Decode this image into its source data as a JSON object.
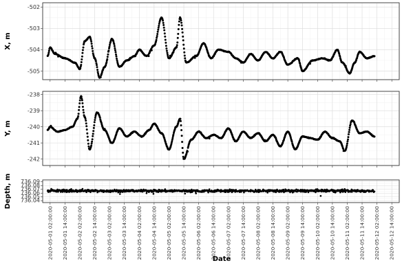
{
  "chart_data": {
    "type": "scatter",
    "xlabel": "Date",
    "x_ticks": [
      "2020-05-01 02:00:00",
      "2020-05-01 14:00:00",
      "2020-05-02 02:00:00",
      "2020-05-02 14:00:00",
      "2020-05-03 02:00:00",
      "2020-05-03 14:00:00",
      "2020-05-04 02:00:00",
      "2020-05-04 14:00:00",
      "2020-05-05 02:00:00",
      "2020-05-05 14:00:00",
      "2020-05-06 02:00:00",
      "2020-05-06 14:00:00",
      "2020-05-07 02:00:00",
      "2020-05-07 14:00:00",
      "2020-05-08 02:00:00",
      "2020-05-08 14:00:00",
      "2020-05-09 02:00:00",
      "2020-05-09 14:00:00",
      "2020-05-10 02:00:00",
      "2020-05-10 14:00:00",
      "2020-05-11 02:00:00",
      "2020-05-11 14:00:00",
      "2020-05-12 02:00:00",
      "2020-05-12 14:00:00"
    ],
    "xlim": [
      "2020-04-30 20:00:00",
      "2020-05-12 20:00:00"
    ],
    "data_range": [
      "2020-05-01 00:00:00",
      "2020-05-12 00:00:00"
    ],
    "grid": true,
    "point_color": "#000000",
    "panels": [
      {
        "ylabel": "X, m",
        "ylim": [
          -505.4,
          -501.8
        ],
        "yticks": [
          "-505",
          "-504",
          "-503",
          "-502"
        ],
        "ytick_values": [
          -505,
          -504,
          -503,
          -502
        ],
        "keypoints": [
          [
            "2020-05-01 00:00:00",
            -504.3
          ],
          [
            "2020-05-01 02:00:00",
            -503.9
          ],
          [
            "2020-05-01 06:00:00",
            -504.2
          ],
          [
            "2020-05-01 14:00:00",
            -504.4
          ],
          [
            "2020-05-01 22:00:00",
            -504.6
          ],
          [
            "2020-05-02 02:00:00",
            -504.9
          ],
          [
            "2020-05-02 06:00:00",
            -503.6
          ],
          [
            "2020-05-02 10:00:00",
            -503.4
          ],
          [
            "2020-05-02 14:00:00",
            -504.4
          ],
          [
            "2020-05-02 18:00:00",
            -505.3
          ],
          [
            "2020-05-02 22:00:00",
            -504.8
          ],
          [
            "2020-05-03 04:00:00",
            -503.5
          ],
          [
            "2020-05-03 10:00:00",
            -504.8
          ],
          [
            "2020-05-03 16:00:00",
            -504.5
          ],
          [
            "2020-05-03 22:00:00",
            -504.3
          ],
          [
            "2020-05-04 02:00:00",
            -504.0
          ],
          [
            "2020-05-04 08:00:00",
            -504.3
          ],
          [
            "2020-05-04 14:00:00",
            -503.8
          ],
          [
            "2020-05-04 20:00:00",
            -502.5
          ],
          [
            "2020-05-05 02:00:00",
            -504.4
          ],
          [
            "2020-05-05 08:00:00",
            -503.9
          ],
          [
            "2020-05-05 11:00:00",
            -502.5
          ],
          [
            "2020-05-05 16:00:00",
            -504.6
          ],
          [
            "2020-05-06 00:00:00",
            -504.3
          ],
          [
            "2020-05-06 06:00:00",
            -503.7
          ],
          [
            "2020-05-06 12:00:00",
            -504.4
          ],
          [
            "2020-05-06 18:00:00",
            -504.0
          ],
          [
            "2020-05-07 02:00:00",
            -504.1
          ],
          [
            "2020-05-07 08:00:00",
            -504.4
          ],
          [
            "2020-05-07 14:00:00",
            -504.6
          ],
          [
            "2020-05-07 20:00:00",
            -504.2
          ],
          [
            "2020-05-08 02:00:00",
            -504.5
          ],
          [
            "2020-05-08 08:00:00",
            -504.1
          ],
          [
            "2020-05-08 14:00:00",
            -504.4
          ],
          [
            "2020-05-08 20:00:00",
            -504.1
          ],
          [
            "2020-05-09 02:00:00",
            -504.7
          ],
          [
            "2020-05-09 10:00:00",
            -504.4
          ],
          [
            "2020-05-09 14:00:00",
            -505.0
          ],
          [
            "2020-05-09 22:00:00",
            -504.5
          ],
          [
            "2020-05-10 06:00:00",
            -504.4
          ],
          [
            "2020-05-10 12:00:00",
            -504.5
          ],
          [
            "2020-05-10 18:00:00",
            -504.0
          ],
          [
            "2020-05-10 22:00:00",
            -504.6
          ],
          [
            "2020-05-11 04:00:00",
            -505.1
          ],
          [
            "2020-05-11 08:00:00",
            -504.6
          ],
          [
            "2020-05-11 12:00:00",
            -504.1
          ],
          [
            "2020-05-11 18:00:00",
            -504.4
          ],
          [
            "2020-05-12 00:00:00",
            -504.3
          ]
        ]
      },
      {
        "ylabel": "Y, m",
        "ylim": [
          -242.4,
          -237.8
        ],
        "yticks": [
          "-242",
          "-241",
          "-240",
          "-239",
          "-238"
        ],
        "ytick_values": [
          -242,
          -241,
          -240,
          -239,
          -238
        ],
        "keypoints": [
          [
            "2020-05-01 00:00:00",
            -240.2
          ],
          [
            "2020-05-01 02:00:00",
            -240.0
          ],
          [
            "2020-05-01 08:00:00",
            -240.3
          ],
          [
            "2020-05-01 14:00:00",
            -240.2
          ],
          [
            "2020-05-01 20:00:00",
            -240.0
          ],
          [
            "2020-05-02 00:00:00",
            -239.5
          ],
          [
            "2020-05-02 03:00:00",
            -238.1
          ],
          [
            "2020-05-02 06:00:00",
            -239.4
          ],
          [
            "2020-05-02 10:00:00",
            -241.4
          ],
          [
            "2020-05-02 16:00:00",
            -239.1
          ],
          [
            "2020-05-02 22:00:00",
            -240.2
          ],
          [
            "2020-05-03 04:00:00",
            -241.0
          ],
          [
            "2020-05-03 10:00:00",
            -240.1
          ],
          [
            "2020-05-03 16:00:00",
            -240.6
          ],
          [
            "2020-05-03 22:00:00",
            -240.3
          ],
          [
            "2020-05-04 04:00:00",
            -240.6
          ],
          [
            "2020-05-04 10:00:00",
            -240.2
          ],
          [
            "2020-05-04 14:00:00",
            -239.8
          ],
          [
            "2020-05-04 20:00:00",
            -240.4
          ],
          [
            "2020-05-05 02:00:00",
            -241.4
          ],
          [
            "2020-05-05 08:00:00",
            -240.0
          ],
          [
            "2020-05-05 11:00:00",
            -239.5
          ],
          [
            "2020-05-05 14:00:00",
            -242.0
          ],
          [
            "2020-05-05 20:00:00",
            -240.8
          ],
          [
            "2020-05-06 02:00:00",
            -240.3
          ],
          [
            "2020-05-06 08:00:00",
            -240.7
          ],
          [
            "2020-05-06 14:00:00",
            -240.5
          ],
          [
            "2020-05-06 20:00:00",
            -240.7
          ],
          [
            "2020-05-07 02:00:00",
            -240.1
          ],
          [
            "2020-05-07 08:00:00",
            -240.9
          ],
          [
            "2020-05-07 14:00:00",
            -240.3
          ],
          [
            "2020-05-07 20:00:00",
            -240.7
          ],
          [
            "2020-05-08 02:00:00",
            -240.4
          ],
          [
            "2020-05-08 08:00:00",
            -240.9
          ],
          [
            "2020-05-08 14:00:00",
            -240.5
          ],
          [
            "2020-05-08 20:00:00",
            -241.2
          ],
          [
            "2020-05-09 02:00:00",
            -240.3
          ],
          [
            "2020-05-09 08:00:00",
            -241.4
          ],
          [
            "2020-05-09 14:00:00",
            -240.6
          ],
          [
            "2020-05-09 20:00:00",
            -240.7
          ],
          [
            "2020-05-10 02:00:00",
            -240.8
          ],
          [
            "2020-05-10 08:00:00",
            -240.3
          ],
          [
            "2020-05-10 14:00:00",
            -240.7
          ],
          [
            "2020-05-10 20:00:00",
            -240.9
          ],
          [
            "2020-05-11 00:00:00",
            -241.5
          ],
          [
            "2020-05-11 06:00:00",
            -239.6
          ],
          [
            "2020-05-11 12:00:00",
            -240.4
          ],
          [
            "2020-05-11 18:00:00",
            -240.3
          ],
          [
            "2020-05-12 00:00:00",
            -240.6
          ]
        ]
      },
      {
        "ylabel": "Depth, m",
        "ylim": [
          736.035,
          736.095
        ],
        "yticks": [
          "736.04",
          "736.05",
          "736.06",
          "736.07",
          "736.08",
          "736.09"
        ],
        "ytick_values": [
          736.04,
          736.05,
          736.06,
          736.07,
          736.08,
          736.09
        ],
        "mean": 736.066,
        "noise_amplitude": 0.006
      }
    ]
  }
}
